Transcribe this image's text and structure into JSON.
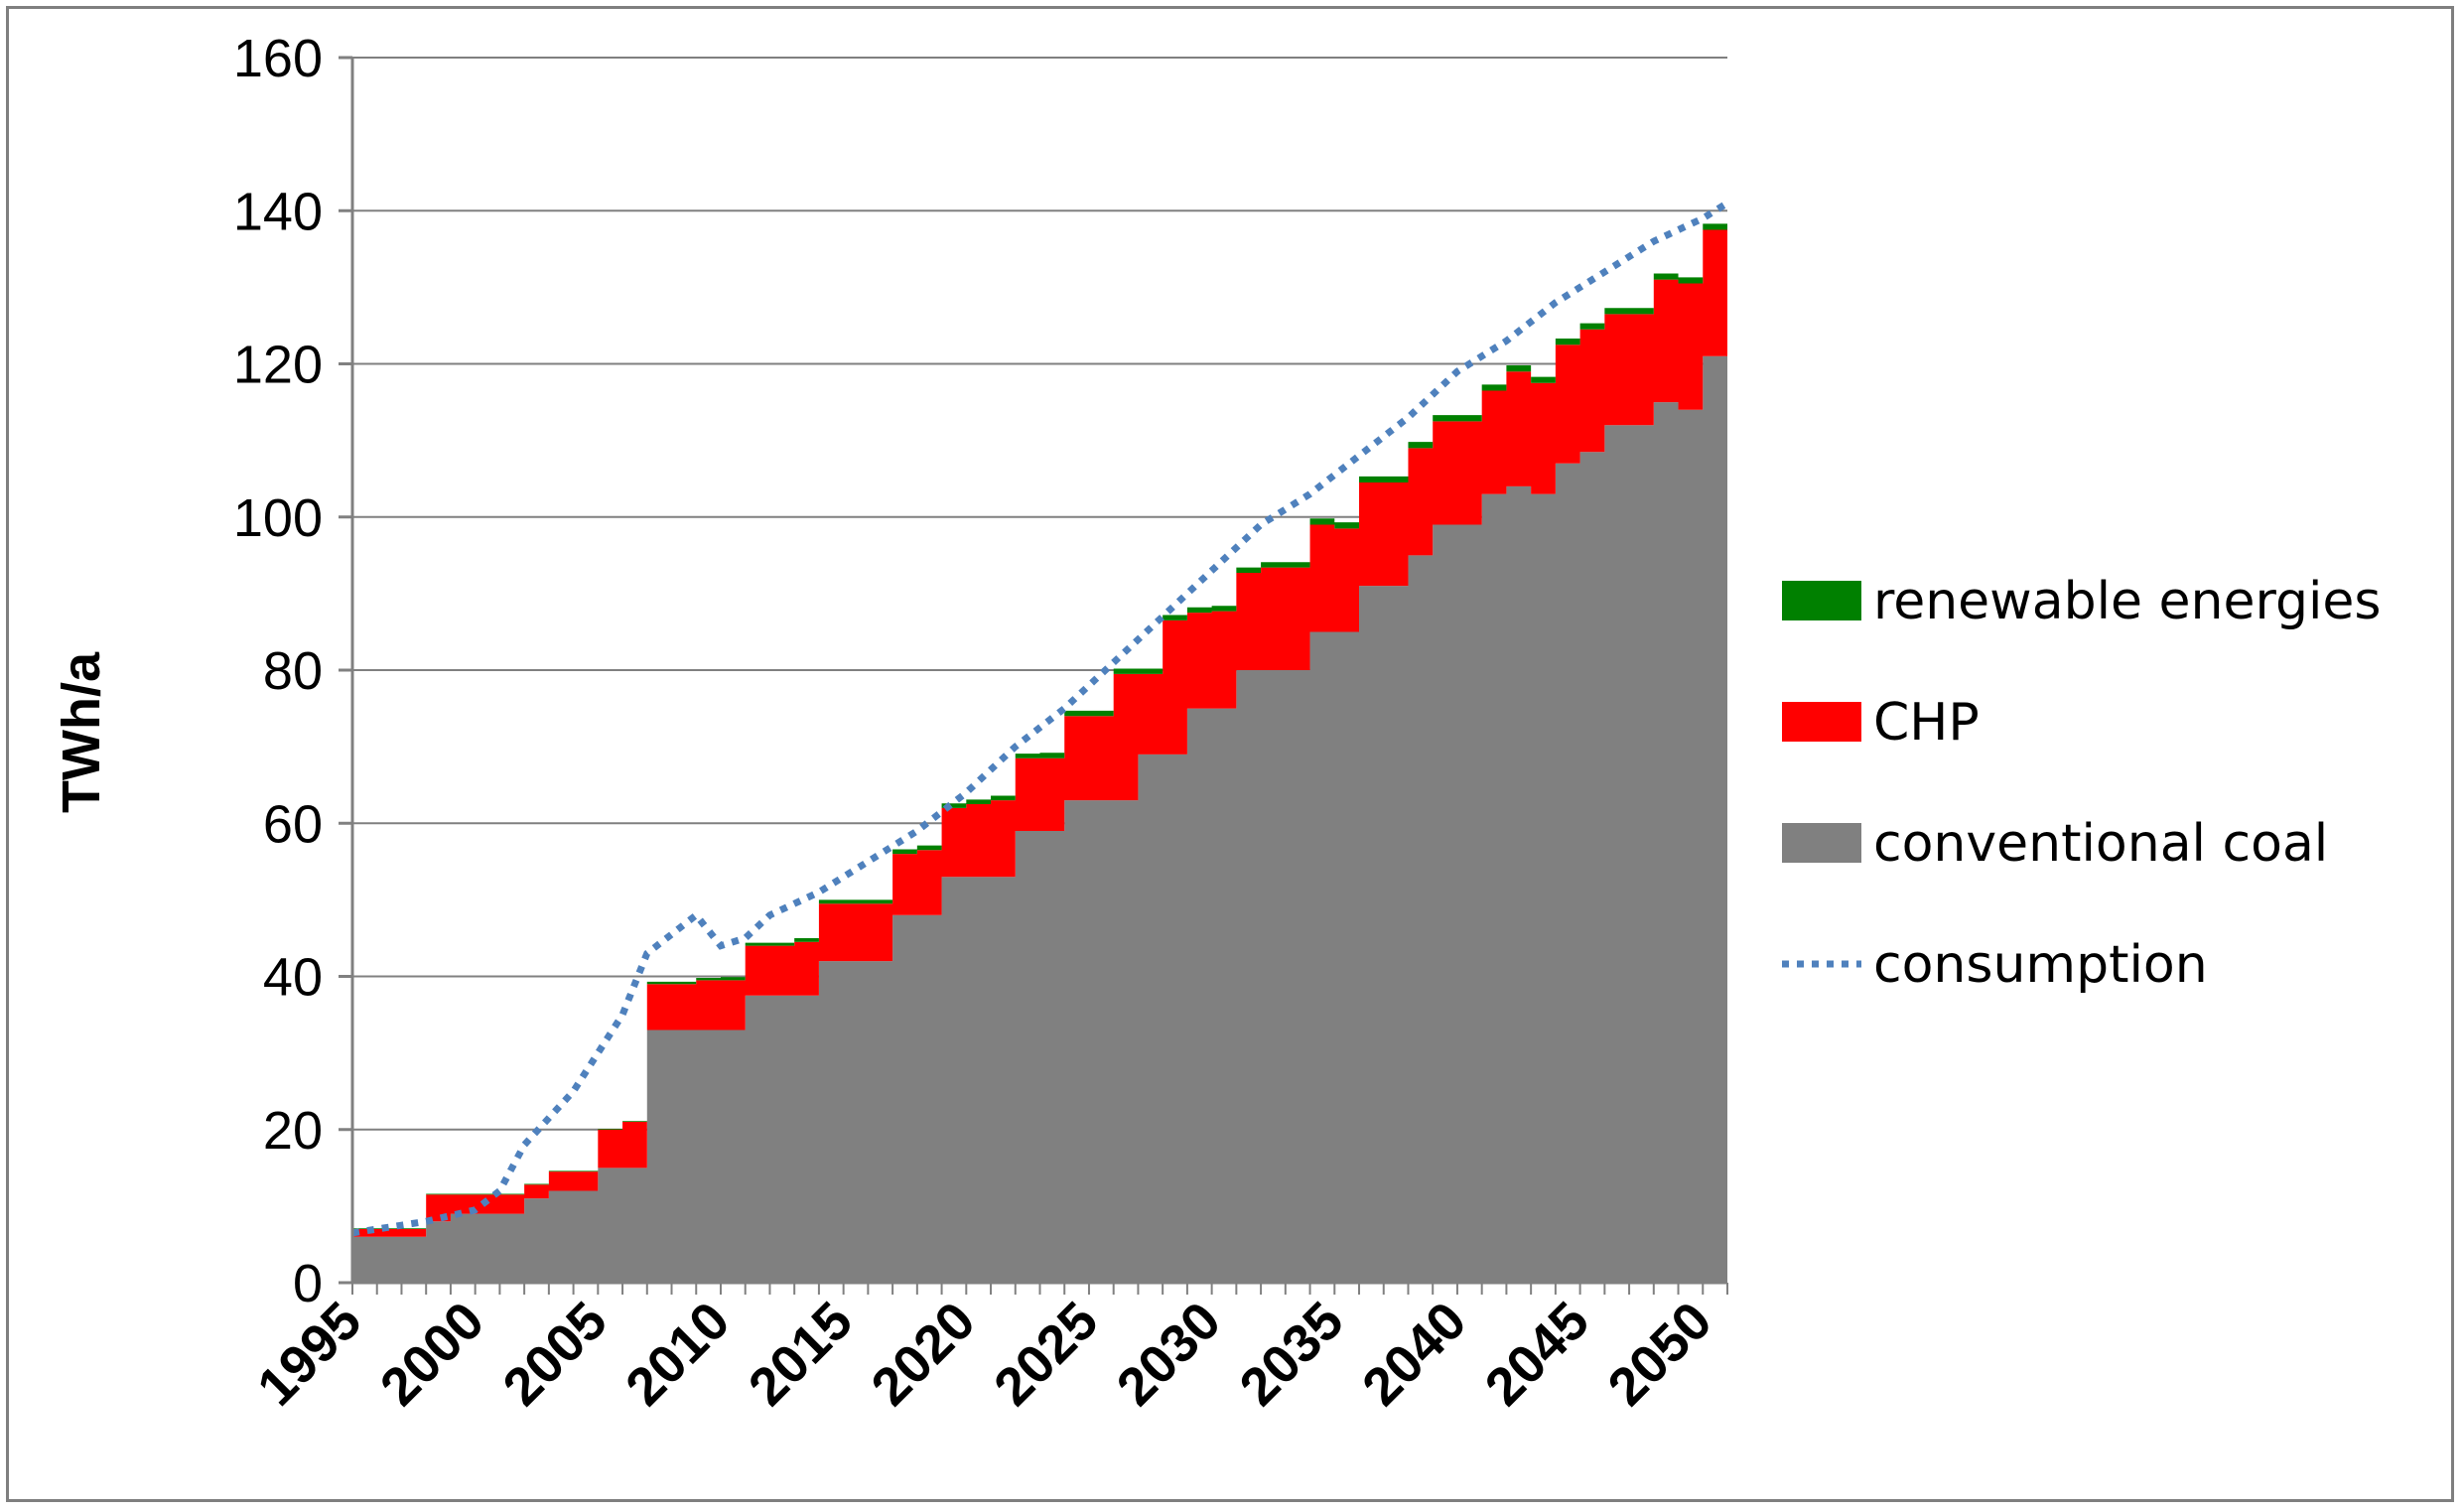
{
  "chart_data": {
    "type": "area",
    "ylabel": "TWh/a",
    "xlabel": "",
    "title": "",
    "ylim": [
      0,
      160
    ],
    "xlim": [
      1995,
      2051
    ],
    "y_ticks": [
      0,
      20,
      40,
      60,
      80,
      100,
      120,
      140,
      160
    ],
    "x_ticks": [
      1995,
      2000,
      2005,
      2010,
      2015,
      2020,
      2025,
      2030,
      2035,
      2040,
      2045,
      2050
    ],
    "grid": "horizontal",
    "legend_position": "right",
    "colors": {
      "conventional_coal": "#808080",
      "chp": "#ff0000",
      "renewable": "#008000",
      "consumption": "#4f81bd",
      "grid": "#808080",
      "frame": "#7f7f7f"
    },
    "years": [
      1995,
      1996,
      1997,
      1998,
      1999,
      2000,
      2001,
      2002,
      2003,
      2004,
      2005,
      2006,
      2007,
      2008,
      2009,
      2010,
      2011,
      2012,
      2013,
      2014,
      2015,
      2016,
      2017,
      2018,
      2019,
      2020,
      2021,
      2022,
      2023,
      2024,
      2025,
      2026,
      2027,
      2028,
      2029,
      2030,
      2031,
      2032,
      2033,
      2034,
      2035,
      2036,
      2037,
      2038,
      2039,
      2040,
      2041,
      2042,
      2043,
      2044,
      2045,
      2046,
      2047,
      2048,
      2049,
      2050
    ],
    "series": [
      {
        "name": "conventional coal",
        "values": [
          6,
          6,
          6,
          8,
          9,
          9,
          9,
          11,
          12,
          12,
          15,
          15,
          33,
          33,
          33,
          33,
          37.5,
          37.5,
          37.5,
          42,
          42,
          42,
          48,
          48,
          53,
          53,
          53,
          59,
          59,
          63,
          63,
          63,
          69,
          69,
          75,
          75,
          80,
          80,
          80,
          85,
          85,
          91,
          91,
          95,
          99,
          99,
          103,
          104,
          103,
          107,
          108.5,
          112,
          112,
          115,
          114,
          121
        ]
      },
      {
        "name": "CHP",
        "values": [
          1,
          1,
          1,
          3.5,
          2.5,
          2.5,
          2.5,
          1.8,
          2.5,
          2.5,
          5,
          6,
          6,
          6,
          6.5,
          6.5,
          6.5,
          6.5,
          7,
          7.5,
          7.5,
          7.5,
          8,
          8.5,
          9,
          9.5,
          10,
          9.5,
          9.5,
          11,
          11,
          16.5,
          10.5,
          17.5,
          12.5,
          12.7,
          12.7,
          13.4,
          13.4,
          14,
          13.5,
          13.5,
          13.5,
          14,
          13.5,
          13.5,
          13.5,
          15,
          14.5,
          15.5,
          16,
          14.5,
          14.5,
          16,
          16.5,
          16.5
        ]
      },
      {
        "name": "renewable energies",
        "values": [
          0.1,
          0.1,
          0.1,
          0.1,
          0.1,
          0.1,
          0.1,
          0.1,
          0.1,
          0.1,
          0.1,
          0.1,
          0.3,
          0.3,
          0.3,
          0.4,
          0.4,
          0.4,
          0.5,
          0.5,
          0.5,
          0.5,
          0.6,
          0.6,
          0.6,
          0.6,
          0.6,
          0.6,
          0.7,
          0.7,
          0.7,
          0.7,
          0.7,
          0.7,
          0.7,
          0.7,
          0.7,
          0.7,
          0.7,
          0.8,
          0.8,
          0.8,
          0.8,
          0.8,
          0.8,
          0.8,
          0.8,
          0.8,
          0.8,
          0.8,
          0.8,
          0.8,
          0.8,
          0.8,
          0.8,
          0.8
        ]
      },
      {
        "name": "consumption",
        "style": "dotted",
        "x": [
          1995,
          1997,
          1998,
          2000,
          2001,
          2002,
          2004,
          2006,
          2007,
          2009,
          2010,
          2011,
          2012,
          2014,
          2016,
          2018,
          2020,
          2022,
          2024,
          2026,
          2028,
          2030,
          2032,
          2034,
          2036,
          2038,
          2040,
          2042,
          2044,
          2046,
          2048,
          2050,
          2051
        ],
        "values": [
          6.5,
          7.5,
          8,
          9.5,
          12,
          18,
          25,
          35,
          43,
          48,
          44,
          45,
          48,
          51,
          55,
          59,
          64,
          70,
          75,
          81,
          87,
          93,
          99,
          103,
          108,
          113,
          119,
          123,
          128,
          132,
          136,
          139,
          141
        ]
      }
    ],
    "legend": [
      {
        "label": "renewable energies",
        "color": "#008000",
        "kind": "box"
      },
      {
        "label": "CHP",
        "color": "#ff0000",
        "kind": "box"
      },
      {
        "label": "conventional coal",
        "color": "#808080",
        "kind": "box"
      },
      {
        "label": "consumption",
        "color": "#4f81bd",
        "kind": "dotted-line"
      }
    ]
  }
}
